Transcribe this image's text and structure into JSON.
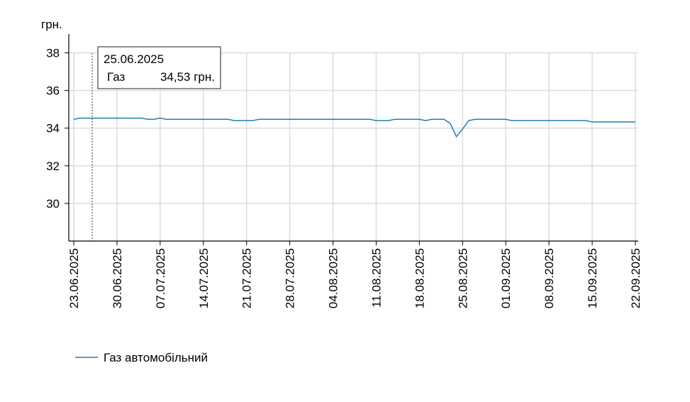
{
  "chart_data": {
    "type": "line",
    "ylabel": "грн.",
    "categories": [
      "23.06.2025",
      null,
      null,
      null,
      null,
      null,
      null,
      "30.06.2025",
      null,
      null,
      null,
      null,
      null,
      null,
      "07.07.2025",
      null,
      null,
      null,
      null,
      null,
      null,
      "14.07.2025",
      null,
      null,
      null,
      null,
      null,
      null,
      "21.07.2025",
      null,
      null,
      null,
      null,
      null,
      null,
      "28.07.2025",
      null,
      null,
      null,
      null,
      null,
      null,
      "04.08.2025",
      null,
      null,
      null,
      null,
      null,
      null,
      "11.08.2025",
      null,
      null,
      null,
      null,
      null,
      null,
      "18.08.2025",
      null,
      null,
      null,
      null,
      null,
      null,
      "25.08.2025",
      null,
      null,
      null,
      null,
      null,
      null,
      "01.09.2025",
      null,
      null,
      null,
      null,
      null,
      null,
      "08.09.2025",
      null,
      null,
      null,
      null,
      null,
      null,
      "15.09.2025",
      null,
      null,
      null,
      null,
      null,
      null,
      "22.09.2025"
    ],
    "series": [
      {
        "name": "Газ автомобільний",
        "color": "#1f7fb4",
        "values": [
          34.47,
          34.53,
          34.53,
          34.53,
          34.53,
          34.53,
          34.53,
          34.53,
          34.53,
          34.53,
          34.53,
          34.53,
          34.47,
          34.47,
          34.53,
          34.47,
          34.47,
          34.47,
          34.47,
          34.47,
          34.47,
          34.47,
          34.47,
          34.47,
          34.47,
          34.47,
          34.4,
          34.4,
          34.4,
          34.4,
          34.47,
          34.47,
          34.47,
          34.47,
          34.47,
          34.47,
          34.47,
          34.47,
          34.47,
          34.47,
          34.47,
          34.47,
          34.47,
          34.47,
          34.47,
          34.47,
          34.47,
          34.47,
          34.47,
          34.4,
          34.4,
          34.4,
          34.47,
          34.47,
          34.47,
          34.47,
          34.47,
          34.4,
          34.47,
          34.47,
          34.47,
          34.25,
          33.55,
          33.95,
          34.4,
          34.47,
          34.47,
          34.47,
          34.47,
          34.47,
          34.47,
          34.4,
          34.4,
          34.4,
          34.4,
          34.4,
          34.4,
          34.4,
          34.4,
          34.4,
          34.4,
          34.4,
          34.4,
          34.4,
          34.33,
          34.33,
          34.33,
          34.33,
          34.33,
          34.33,
          34.33,
          34.33
        ]
      }
    ],
    "ylim": [
      28,
      39
    ],
    "yticks": [
      30,
      32,
      34,
      36,
      38
    ],
    "grid": true,
    "tooltip": {
      "date": "25.06.2025",
      "series": "Газ",
      "value": "34,53 грн."
    }
  }
}
